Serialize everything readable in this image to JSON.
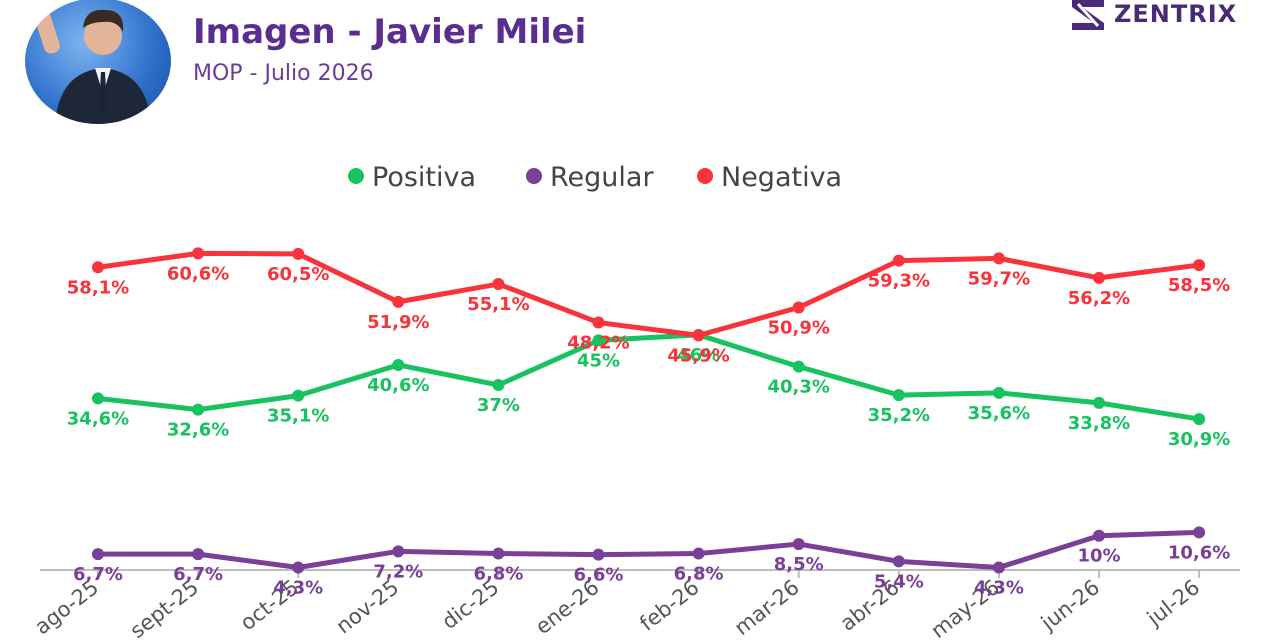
{
  "header": {
    "title": "Imagen - Javier Milei",
    "subtitle": "MOP - Julio 2026",
    "brand": "ZENTRIX"
  },
  "chart_data": {
    "type": "line",
    "title": "Imagen - Javier Milei",
    "subtitle": "MOP - Julio 2026",
    "categories": [
      "ago-25",
      "sept-25",
      "oct-25",
      "nov-25",
      "dic-25",
      "ene-26",
      "feb-26",
      "mar-26",
      "abr-26",
      "may-26",
      "jun-26",
      "jul-26"
    ],
    "series": [
      {
        "name": "Positiva",
        "color": "#17c25f",
        "values": [
          34.6,
          32.6,
          35.1,
          40.6,
          37,
          45,
          46,
          40.3,
          35.2,
          35.6,
          33.8,
          30.9
        ],
        "labels": [
          "34,6%",
          "32,6%",
          "35,1%",
          "40,6%",
          "37%",
          "45%",
          "46%",
          "40,3%",
          "35,2%",
          "35,6%",
          "33,8%",
          "30,9%"
        ]
      },
      {
        "name": "Regular",
        "color": "#7a3f97",
        "values": [
          6.7,
          6.7,
          4.3,
          7.2,
          6.8,
          6.6,
          6.8,
          8.5,
          5.4,
          4.3,
          10,
          10.6
        ],
        "labels": [
          "6,7%",
          "6,7%",
          "4,3%",
          "7,2%",
          "6,8%",
          "6,6%",
          "6,8%",
          "8,5%",
          "5,4%",
          "4,3%",
          "10%",
          "10,6%"
        ]
      },
      {
        "name": "Negativa",
        "color": "#f8333b",
        "values": [
          58.1,
          60.6,
          60.5,
          51.9,
          55.1,
          48.2,
          45.9,
          50.9,
          59.3,
          59.7,
          56.2,
          58.5
        ],
        "labels": [
          "58,1%",
          "60,6%",
          "60,5%",
          "51,9%",
          "55,1%",
          "48,2%",
          "45,9%",
          "50,9%",
          "59,3%",
          "59,7%",
          "56,2%",
          "58,5%"
        ]
      }
    ],
    "legend": "top-center",
    "grid": false
  }
}
